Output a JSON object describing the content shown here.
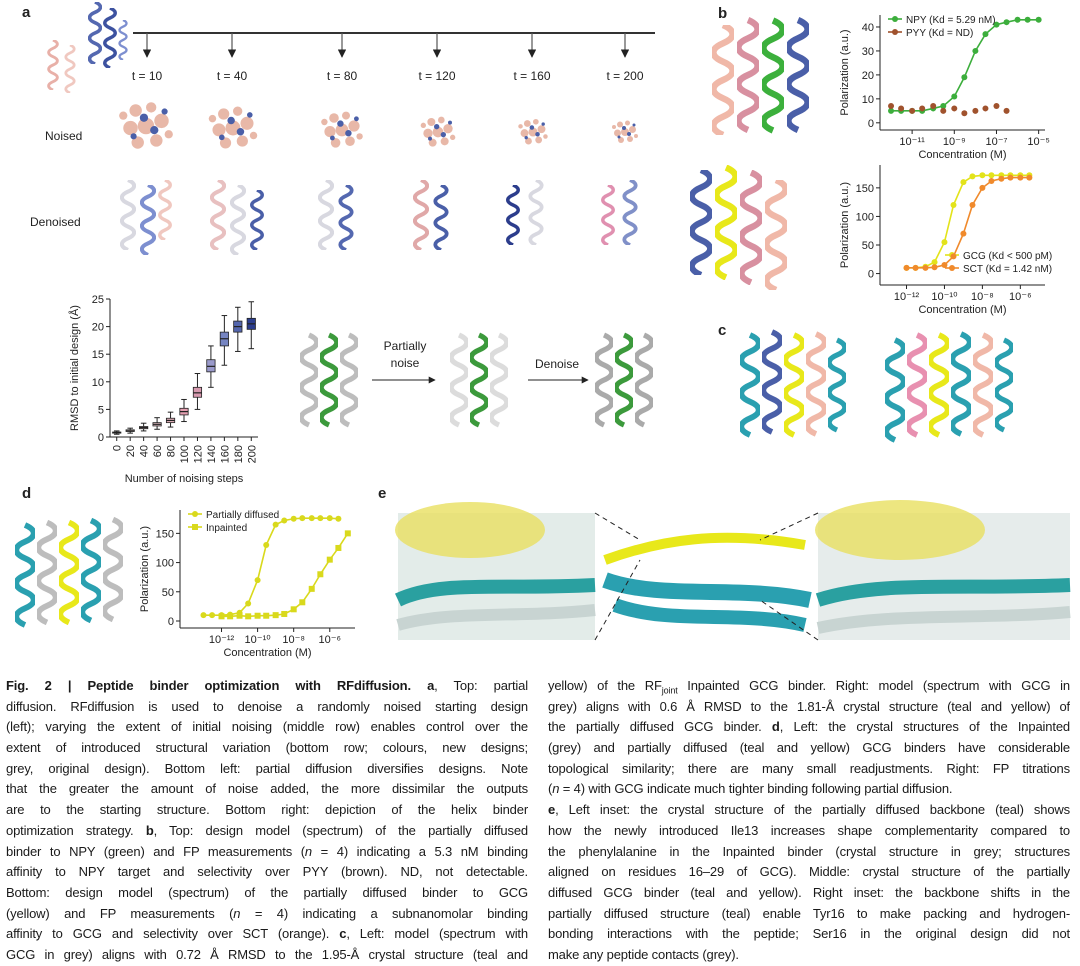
{
  "figure": {
    "panel_labels": [
      "a",
      "b",
      "c",
      "d",
      "e"
    ],
    "timesteps": [
      "t = 10",
      "t = 40",
      "t = 80",
      "t = 120",
      "t = 160",
      "t = 200"
    ],
    "row_labels": [
      "Noised",
      "Denoised"
    ],
    "strategy": {
      "step1": [
        "Partially",
        "noise"
      ],
      "step2": "Denoise"
    }
  },
  "chart_data": [
    {
      "type": "box",
      "xlabel": "Number of noising steps",
      "ylabel": "RMSD to initial design (Å)",
      "categories": [
        0,
        20,
        40,
        60,
        80,
        100,
        120,
        140,
        160,
        180,
        200
      ],
      "low": [
        0.5,
        0.7,
        1.1,
        1.4,
        1.8,
        2.8,
        5.0,
        9.0,
        13.0,
        15.5,
        16.0
      ],
      "q1": [
        0.7,
        1.0,
        1.5,
        2.0,
        2.6,
        4.0,
        7.2,
        11.8,
        16.5,
        19.0,
        19.5
      ],
      "median": [
        0.8,
        1.1,
        1.7,
        2.3,
        3.0,
        4.6,
        8.0,
        12.8,
        17.8,
        20.0,
        20.5
      ],
      "q3": [
        0.9,
        1.3,
        1.9,
        2.6,
        3.4,
        5.2,
        9.0,
        14.0,
        19.0,
        21.0,
        21.5
      ],
      "high": [
        1.1,
        1.6,
        2.5,
        3.5,
        4.5,
        6.8,
        11.5,
        16.5,
        22.0,
        23.5,
        24.5
      ],
      "colors": [
        "#f3e3e3",
        "#efd6d6",
        "#ebcccf",
        "#e6c0c6",
        "#e2b2bc",
        "#e39fb0",
        "#d79aaf",
        "#9a9acb",
        "#7685c2",
        "#5466ad",
        "#2c3d8c"
      ],
      "ylim": [
        0,
        25
      ],
      "yticks": [
        0,
        5,
        10,
        15,
        20,
        25
      ]
    },
    {
      "type": "line",
      "xscale": "log",
      "xlabel": "Concentration (M)",
      "ylabel": "Polarization (a.u.)",
      "legend": "upper left",
      "xlim": [
        3e-13,
        2e-05
      ],
      "ylim": [
        -3,
        45
      ],
      "xticks": [
        {
          "value": 1e-11,
          "label": "10⁻¹¹"
        },
        {
          "value": 1e-09,
          "label": "10⁻⁹"
        },
        {
          "value": 1e-07,
          "label": "10⁻⁷"
        },
        {
          "value": 1e-05,
          "label": "10⁻⁵"
        }
      ],
      "yticks": [
        0,
        10,
        20,
        30,
        40
      ],
      "series": [
        {
          "name": "NPY (Kd = 5.29 nM)",
          "color": "#3cae3c",
          "marker": "circle",
          "line": true,
          "x": [
            1e-12,
            3e-12,
            1e-11,
            3e-11,
            1e-10,
            3e-10,
            1e-09,
            3e-09,
            1e-08,
            3e-08,
            1e-07,
            3e-07,
            1e-06,
            3e-06,
            1e-05
          ],
          "values": [
            5,
            5,
            5,
            5,
            6,
            7,
            11,
            19,
            30,
            37,
            41,
            42,
            43,
            43,
            43
          ]
        },
        {
          "name": "PYY (Kd = ND)",
          "color": "#a0522d",
          "marker": "circle",
          "line": false,
          "x": [
            1e-12,
            3e-12,
            1e-11,
            3e-11,
            1e-10,
            3e-10,
            1e-09,
            3e-09,
            1e-08,
            3e-08,
            1e-07,
            3e-07
          ],
          "values": [
            7,
            6,
            5,
            6,
            7,
            5,
            6,
            4,
            5,
            6,
            7,
            5
          ]
        }
      ]
    },
    {
      "type": "line",
      "xscale": "log",
      "xlabel": "Concentration (M)",
      "ylabel": "Polarization (a.u.)",
      "legend": "lower right",
      "xlim": [
        4e-14,
        2e-05
      ],
      "ylim": [
        -20,
        190
      ],
      "xticks": [
        {
          "value": 1e-12,
          "label": "10⁻¹²"
        },
        {
          "value": 1e-10,
          "label": "10⁻¹⁰"
        },
        {
          "value": 1e-08,
          "label": "10⁻⁸"
        },
        {
          "value": 1e-06,
          "label": "10⁻⁶"
        }
      ],
      "yticks": [
        0,
        50,
        100,
        150
      ],
      "series": [
        {
          "name": "GCG (Kd < 500 pM)",
          "color": "#e3e31a",
          "marker": "circle",
          "line": true,
          "x": [
            1e-12,
            3e-12,
            1e-11,
            3e-11,
            1e-10,
            3e-10,
            1e-09,
            3e-09,
            1e-08,
            3e-08,
            1e-07,
            3e-07,
            1e-06,
            3e-06
          ],
          "values": [
            10,
            10,
            12,
            20,
            55,
            120,
            160,
            170,
            172,
            172,
            172,
            172,
            172,
            172
          ]
        },
        {
          "name": "SCT (Kd = 1.42 nM)",
          "color": "#f08a2c",
          "marker": "circle",
          "line": true,
          "x": [
            1e-12,
            3e-12,
            1e-11,
            3e-11,
            1e-10,
            3e-10,
            1e-09,
            3e-09,
            1e-08,
            3e-08,
            1e-07,
            3e-07,
            1e-06,
            3e-06
          ],
          "values": [
            10,
            10,
            10,
            11,
            15,
            30,
            70,
            120,
            150,
            162,
            166,
            168,
            168,
            168
          ]
        }
      ]
    },
    {
      "type": "line",
      "xscale": "log",
      "xlabel": "Concentration (M)",
      "ylabel": "Polarization (a.u.)",
      "legend": "upper left",
      "xlim": [
        5e-15,
        2.5e-05
      ],
      "ylim": [
        -12,
        190
      ],
      "xticks": [
        {
          "value": 1e-12,
          "label": "10⁻¹²"
        },
        {
          "value": 1e-10,
          "label": "10⁻¹⁰"
        },
        {
          "value": 1e-08,
          "label": "10⁻⁸"
        },
        {
          "value": 1e-06,
          "label": "10⁻⁶"
        }
      ],
      "yticks": [
        0,
        50,
        100,
        150
      ],
      "series": [
        {
          "name": "Partially diffused",
          "color": "#d9d91c",
          "marker": "circle",
          "line": true,
          "x": [
            1e-13,
            3e-13,
            1e-12,
            3e-12,
            1e-11,
            3e-11,
            1e-10,
            3e-10,
            1e-09,
            3e-09,
            1e-08,
            3e-08,
            1e-07,
            3e-07,
            1e-06,
            3e-06
          ],
          "values": [
            10,
            10,
            10,
            11,
            14,
            30,
            70,
            130,
            165,
            172,
            175,
            176,
            176,
            176,
            176,
            175
          ]
        },
        {
          "name": "Inpainted",
          "color": "#d9d91c",
          "marker": "square",
          "line": true,
          "x": [
            1e-12,
            3e-12,
            1e-11,
            3e-11,
            1e-10,
            3e-10,
            1e-09,
            3e-09,
            1e-08,
            3e-08,
            1e-07,
            3e-07,
            1e-06,
            3e-06,
            1e-05
          ],
          "values": [
            8,
            8,
            9,
            8,
            9,
            9,
            10,
            12,
            20,
            32,
            55,
            80,
            105,
            125,
            150
          ]
        }
      ]
    }
  ],
  "caption": {
    "left": [
      [
        {
          "text": "Fig. 2 | Peptide binder optimization with RFdiffusion. a",
          "style": "bold"
        },
        ", Top: partial"
      ],
      [
        "diffusion. RFdiffusion is used to denoise a randomly noised starting design"
      ],
      [
        "(left); varying the extent of initial noising (middle row) enables control over the"
      ],
      [
        "extent of introduced structural variation (bottom row; colours, new designs;"
      ],
      [
        "grey, original design). Bottom left: partial diffusion diversifies designs. Note"
      ],
      [
        "that the greater the amount of noise added, the more dissimilar the outputs"
      ],
      [
        "are to the starting structure. Bottom right: depiction of the helix binder"
      ],
      [
        "optimization strategy. ",
        {
          "text": "b",
          "style": "bold"
        },
        ", Top: design model (spectrum) of the partially diffused"
      ],
      [
        "binder to NPY (green) and FP measurements (",
        {
          "text": "n",
          "style": "italic"
        },
        " = 4) indicating a 5.3 nM binding"
      ],
      [
        "affinity to NPY target and selectivity over PYY (brown). ND, not detectable."
      ],
      [
        "Bottom: design model (spectrum) of the partially diffused binder to GCG"
      ],
      [
        "(yellow) and FP measurements (",
        {
          "text": "n",
          "style": "italic"
        },
        " = 4) indicating a subnanomolar binding"
      ],
      [
        "affinity to GCG and selectivity over SCT (orange). ",
        {
          "text": "c",
          "style": "bold"
        },
        ", Left: model (spectrum with"
      ],
      [
        "GCG in grey) aligns with 0.72 Å RMSD to the 1.95-Å crystal structure (teal and"
      ]
    ],
    "right": [
      [
        "yellow) of the RF",
        {
          "text": "joint",
          "style": "sub"
        },
        " Inpainted GCG binder. Right: model (spectrum with GCG in"
      ],
      [
        "grey) aligns with 0.6 Å RMSD to the 1.81-Å crystal structure (teal and yellow) of"
      ],
      [
        "the partially diffused GCG binder. ",
        {
          "text": "d",
          "style": "bold"
        },
        ", Left: the crystal structures of the Inpainted"
      ],
      [
        "(grey) and partially diffused (teal and yellow) GCG binders have considerable"
      ],
      [
        "topological similarity; there are many small readjustments. Right: FP titrations"
      ],
      [
        "(",
        {
          "text": "n",
          "style": "italic"
        },
        " = 4) with GCG indicate much tighter binding following partial diffusion."
      ],
      [
        {
          "text": "e",
          "style": "bold"
        },
        ", Left inset: the crystal structure of the partially diffused backbone (teal) shows"
      ],
      [
        "how the newly introduced Ile13 increases shape complementarity compared to"
      ],
      [
        "the phenylalanine in the Inpainted binder (crystal structure in grey; structures"
      ],
      [
        "aligned on residues 16–29 of GCG). Middle: crystal structure of the partially"
      ],
      [
        "diffused GCG binder (teal and yellow). Right inset: the backbone shifts in the"
      ],
      [
        "partially diffused structure (teal) enable Tyr16 to make packing and hydrogen-"
      ],
      [
        "bonding interactions with the peptide; Ser16 in the original design did not"
      ],
      [
        "make any peptide contacts (grey)."
      ]
    ]
  }
}
